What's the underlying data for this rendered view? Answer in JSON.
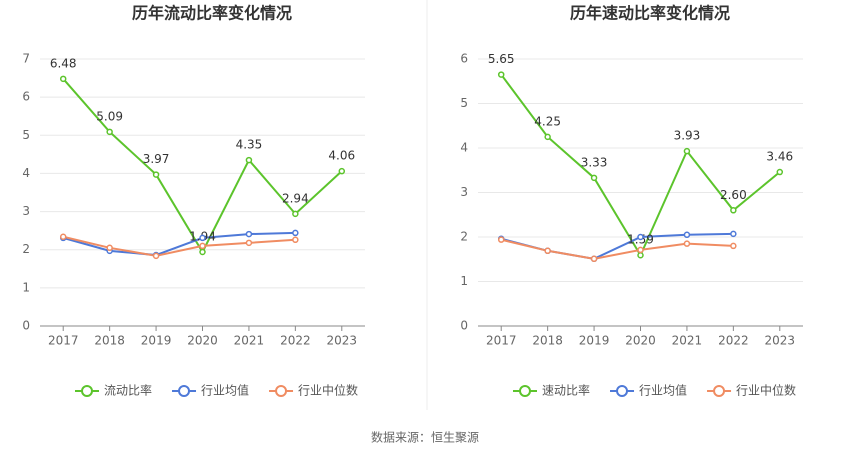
{
  "chart_data": [
    {
      "type": "line",
      "title": "历年流动比率变化情况",
      "categories": [
        "2017",
        "2018",
        "2019",
        "2020",
        "2021",
        "2022",
        "2023"
      ],
      "series": [
        {
          "name": "流动比率",
          "color": "#5cc42c",
          "values": [
            6.48,
            5.09,
            3.97,
            1.94,
            4.35,
            2.94,
            4.06
          ],
          "value_labels": [
            "6.48",
            "5.09",
            "3.97",
            "1.94",
            "4.35",
            "2.94",
            "4.06"
          ]
        },
        {
          "name": "行业均值",
          "color": "#4e79d8",
          "values": [
            2.31,
            1.97,
            1.86,
            2.31,
            2.41,
            2.44,
            null
          ]
        },
        {
          "name": "行业中位数",
          "color": "#f08c62",
          "values": [
            2.34,
            2.05,
            1.84,
            2.1,
            2.18,
            2.26,
            null
          ]
        }
      ],
      "ylim": [
        0,
        7
      ],
      "yticks": [
        0,
        1,
        2,
        3,
        4,
        5,
        6,
        7
      ],
      "grid": true
    },
    {
      "type": "line",
      "title": "历年速动比率变化情况",
      "categories": [
        "2017",
        "2018",
        "2019",
        "2020",
        "2021",
        "2022",
        "2023"
      ],
      "series": [
        {
          "name": "速动比率",
          "color": "#5cc42c",
          "values": [
            5.65,
            4.25,
            3.33,
            1.59,
            3.93,
            2.6,
            3.46
          ],
          "value_labels": [
            "5.65",
            "4.25",
            "3.33",
            "1.59",
            "3.93",
            "2.60",
            "3.46"
          ]
        },
        {
          "name": "行业均值",
          "color": "#4e79d8",
          "values": [
            1.96,
            1.69,
            1.51,
            2.0,
            2.05,
            2.07,
            null
          ]
        },
        {
          "name": "行业中位数",
          "color": "#f08c62",
          "values": [
            1.94,
            1.69,
            1.51,
            1.71,
            1.85,
            1.8,
            null
          ]
        }
      ],
      "ylim": [
        0,
        6
      ],
      "yticks": [
        0,
        1,
        2,
        3,
        4,
        5,
        6
      ],
      "grid": true
    }
  ],
  "source": "数据来源：恒生聚源"
}
